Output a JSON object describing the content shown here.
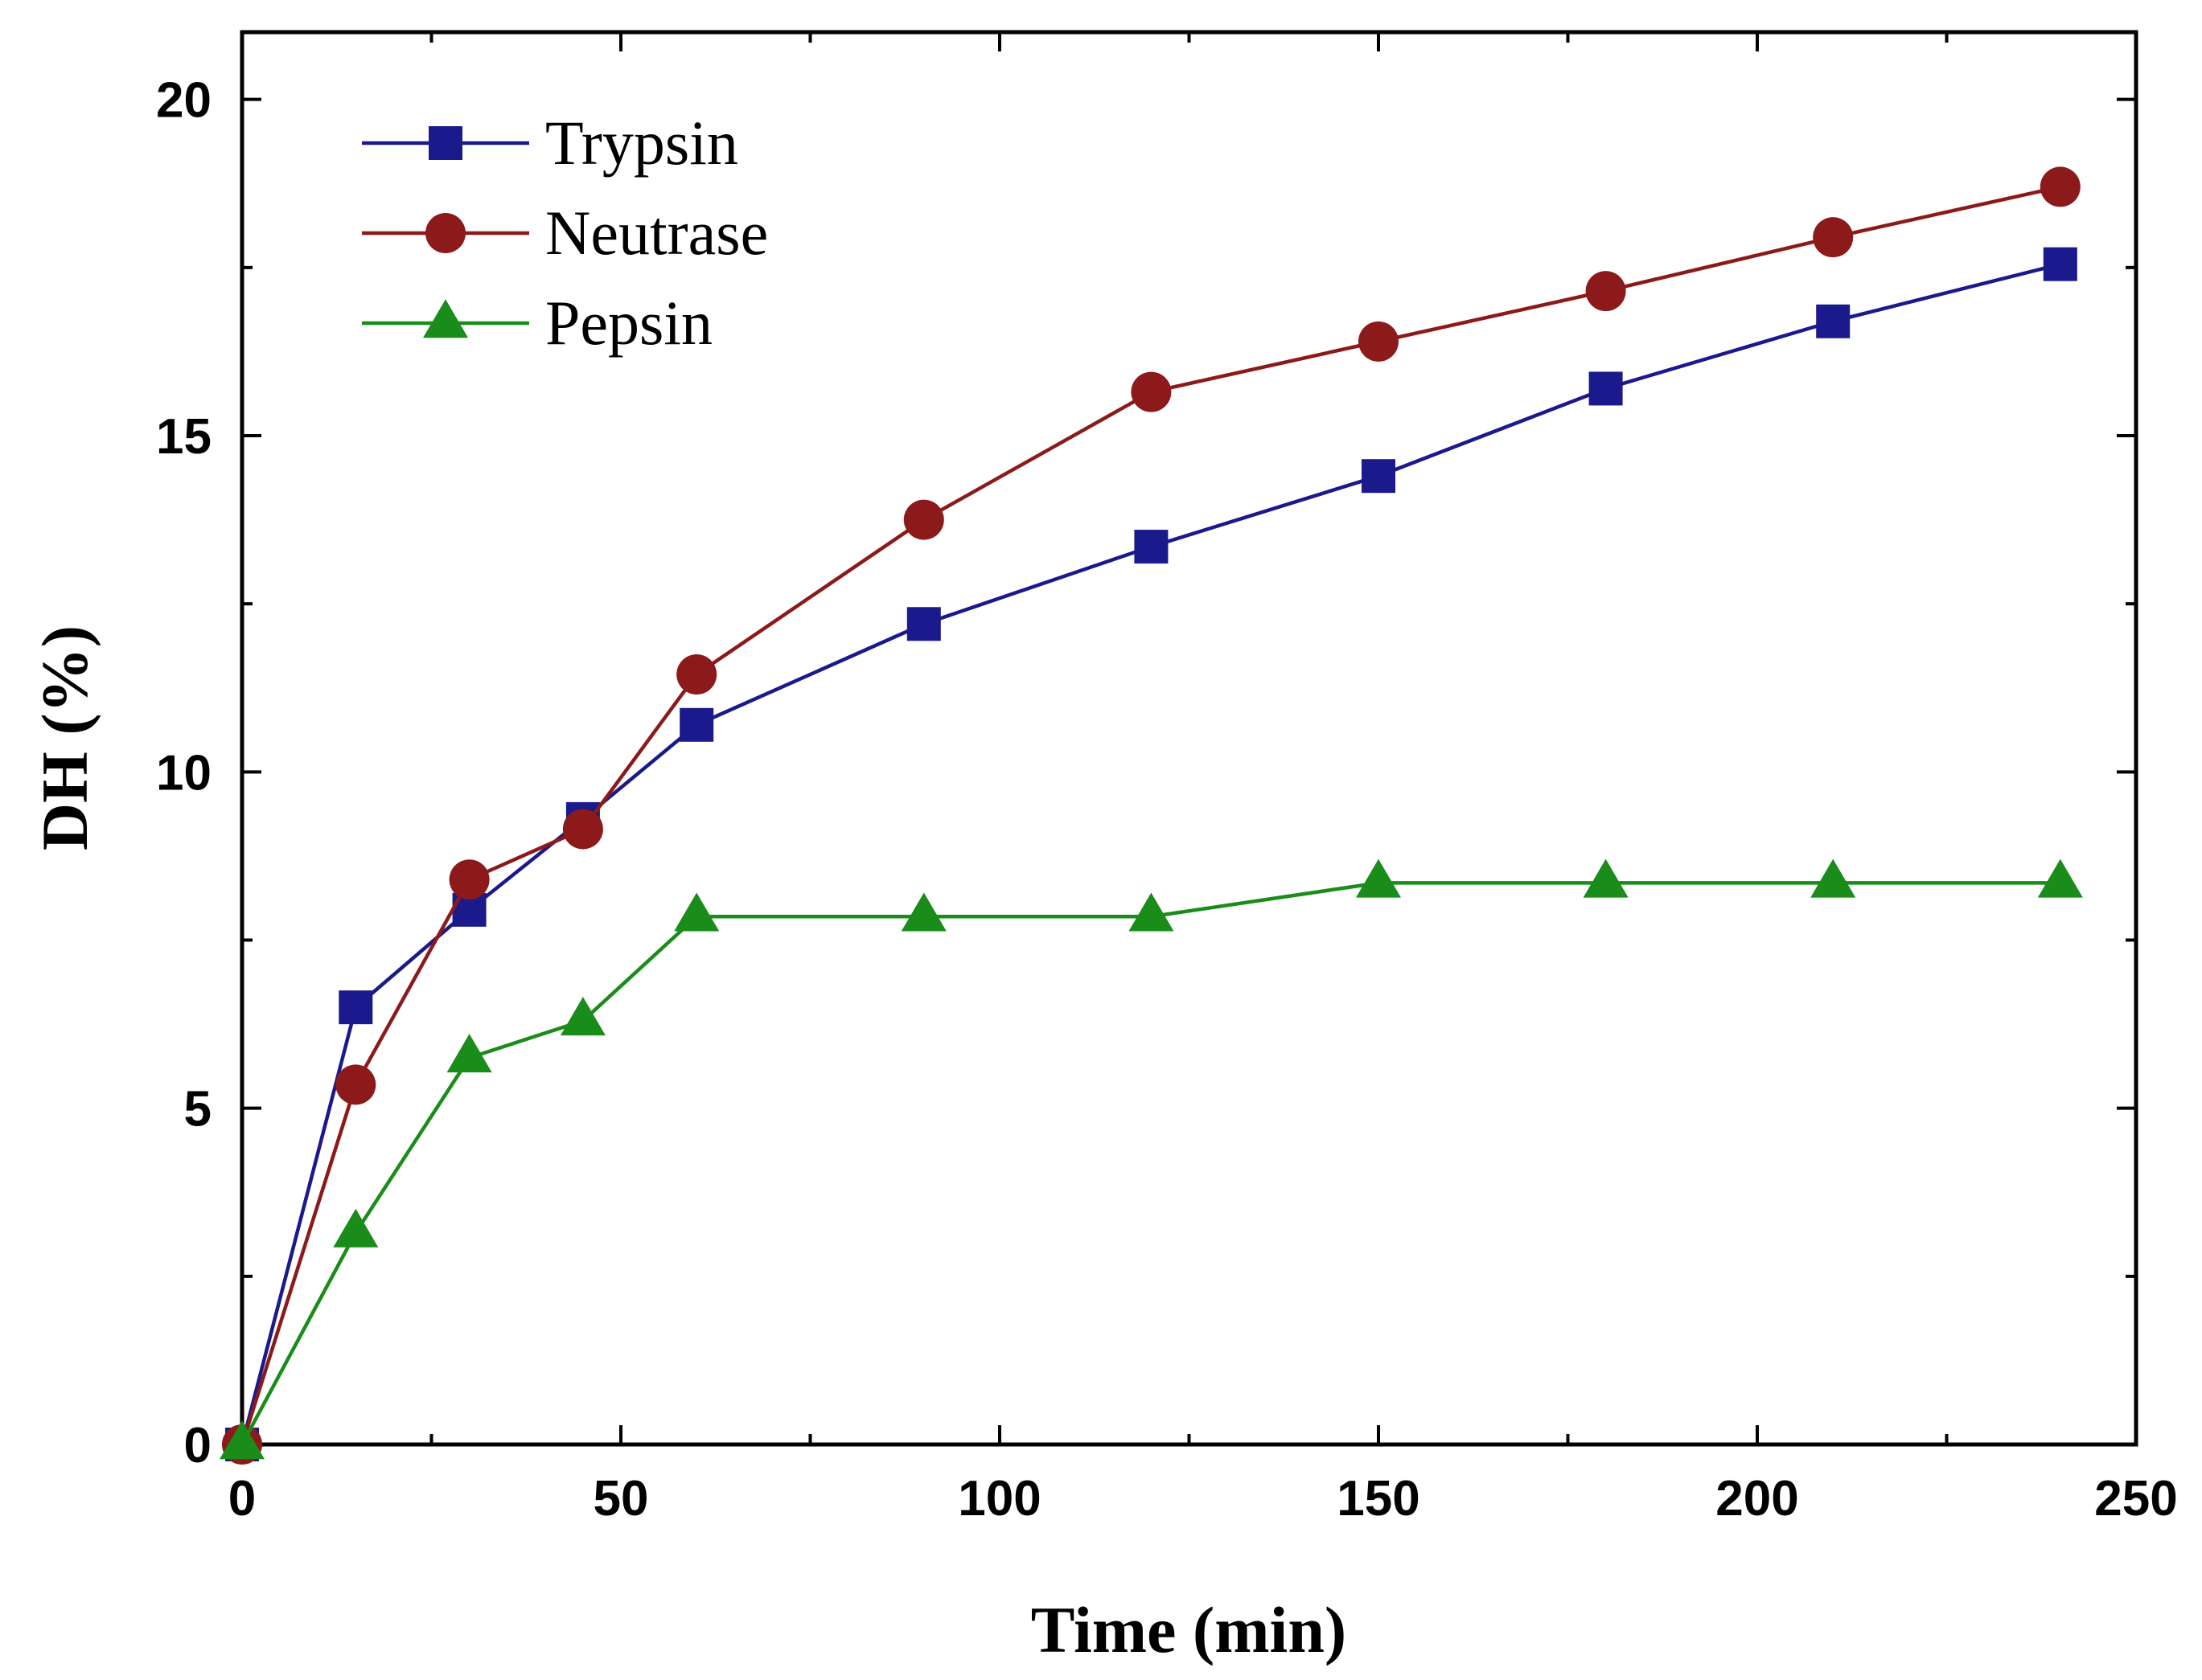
{
  "chart_data": {
    "type": "line",
    "title": "",
    "xlabel": "Time (min)",
    "ylabel": "DH (%)",
    "xlim": [
      0,
      250
    ],
    "ylim": [
      0,
      21
    ],
    "xticks": [
      0,
      50,
      100,
      150,
      200,
      250
    ],
    "yticks": [
      0,
      5,
      10,
      15,
      20
    ],
    "x_minor_step": 25,
    "y_minor_step": 2.5,
    "grid": false,
    "legend_position": "top-left",
    "series": [
      {
        "name": "Trypsin",
        "color": "#1a1a8c",
        "marker": "square",
        "x": [
          0,
          15,
          30,
          45,
          60,
          90,
          120,
          150,
          180,
          210,
          240
        ],
        "y": [
          0,
          6.5,
          7.95,
          9.3,
          10.7,
          12.2,
          13.35,
          14.4,
          15.7,
          16.7,
          17.55
        ]
      },
      {
        "name": "Neutrase",
        "color": "#8c1a1a",
        "marker": "circle",
        "x": [
          0,
          15,
          30,
          45,
          60,
          90,
          120,
          150,
          180,
          210,
          240
        ],
        "y": [
          0,
          5.35,
          8.4,
          9.15,
          11.45,
          13.75,
          15.65,
          16.4,
          17.15,
          17.95,
          18.7
        ]
      },
      {
        "name": "Pepsin",
        "color": "#1a8c1a",
        "marker": "triangle",
        "x": [
          0,
          15,
          30,
          45,
          60,
          90,
          120,
          150,
          180,
          210,
          240
        ],
        "y": [
          0,
          3.15,
          5.75,
          6.3,
          7.85,
          7.85,
          7.85,
          8.35,
          8.35,
          8.35,
          8.35
        ]
      }
    ]
  }
}
